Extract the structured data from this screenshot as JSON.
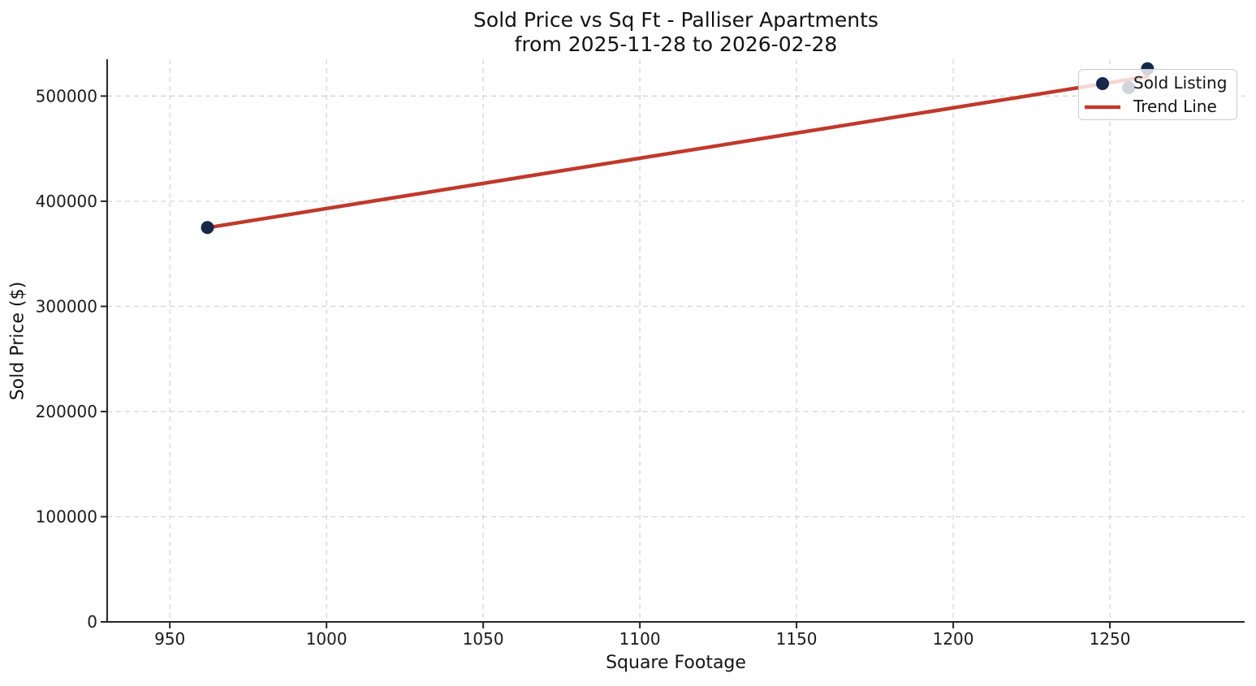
{
  "figure": {
    "title_line1": "Sold Price vs Sq Ft - Palliser Apartments",
    "title_line2": "from 2025-11-28 to 2026-02-28",
    "xlabel": "Square Footage",
    "ylabel": "Sold Price ($)"
  },
  "chart_data": {
    "type": "scatter",
    "title": "Sold Price vs Sq Ft - Palliser Apartments from 2025-11-28 to 2026-02-28",
    "xlabel": "Square Footage",
    "ylabel": "Sold Price ($)",
    "series": [
      {
        "name": "Sold Listing",
        "type": "scatter",
        "points": [
          {
            "sqft": 962,
            "price": 375000
          },
          {
            "sqft": 1256,
            "price": 508000
          },
          {
            "sqft": 1262,
            "price": 526000
          }
        ]
      },
      {
        "name": "Trend Line",
        "type": "linear-fit",
        "x_range": [
          962,
          1262
        ]
      }
    ],
    "xlim": [
      930,
      1293
    ],
    "ylim": [
      0,
      535000
    ],
    "xticks": [
      950,
      1000,
      1050,
      1100,
      1150,
      1200,
      1250
    ],
    "yticks": [
      0,
      100000,
      200000,
      300000,
      400000,
      500000
    ],
    "grid": true,
    "grid_style": "dashed",
    "legend_position": "upper right",
    "legend": [
      "Sold Listing",
      "Trend Line"
    ],
    "colors": {
      "point": "#16284a",
      "trend": "#c0392b",
      "grid": "#d5d5d5",
      "spine": "#262626",
      "text": "#1a1a1a"
    }
  }
}
